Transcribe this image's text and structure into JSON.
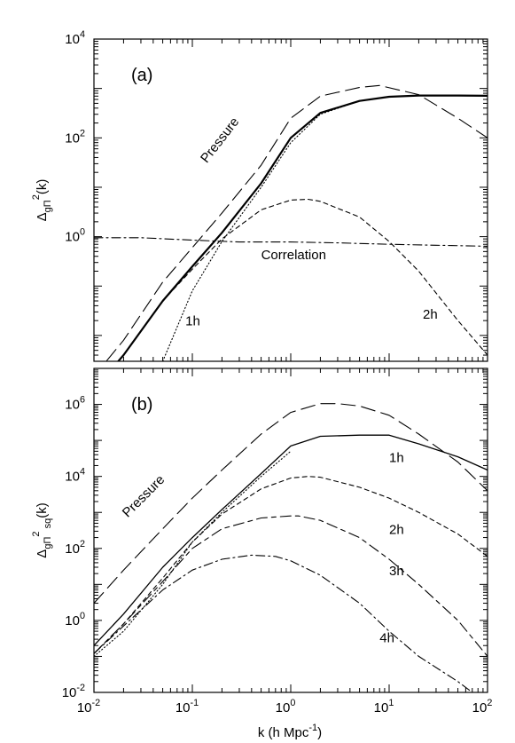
{
  "chart_data": [
    {
      "type": "line",
      "panel_label": "(a)",
      "ylabel": {
        "base": "Δ",
        "sub": "gΠ",
        "sup": "2",
        "tail": "(k)"
      },
      "xlabel": "",
      "xscale": "log",
      "yscale": "log",
      "xlim": [
        0.01,
        100
      ],
      "ylim": [
        0.003,
        10000
      ],
      "y_tick_labels": [
        {
          "base": "10",
          "exp": "4",
          "value": 10000
        },
        {
          "base": "10",
          "exp": "2",
          "value": 100
        },
        {
          "base": "10",
          "exp": "0",
          "value": 1
        }
      ],
      "x_tick_labels": [],
      "annotations": [
        {
          "text": "Pressure",
          "x": 0.14,
          "y": 30,
          "rotate": -52
        },
        {
          "text": "Correlation",
          "x": 0.5,
          "y": 0.35,
          "rotate": 0
        },
        {
          "text": "1h",
          "x": 0.085,
          "y": 0.016,
          "rotate": 0
        },
        {
          "text": "2h",
          "x": 22,
          "y": 0.022,
          "rotate": 0
        }
      ],
      "series": [
        {
          "style": "long-dash",
          "x": [
            0.01,
            0.02,
            0.05,
            0.1,
            0.2,
            0.5,
            1,
            2,
            5,
            8,
            20,
            50,
            100
          ],
          "y": [
            0.0015,
            0.008,
            0.12,
            0.6,
            3,
            28,
            250,
            700,
            1050,
            1150,
            750,
            250,
            100
          ]
        },
        {
          "style": "thick-solid",
          "x": [
            0.01,
            0.02,
            0.05,
            0.1,
            0.2,
            0.5,
            1,
            2,
            5,
            10,
            20,
            50,
            100
          ],
          "y": [
            0.0008,
            0.004,
            0.05,
            0.25,
            1.2,
            12,
            100,
            320,
            560,
            680,
            720,
            720,
            710
          ]
        },
        {
          "style": "dotted",
          "x": [
            0.05,
            0.1,
            0.2,
            0.5,
            1,
            2,
            5
          ],
          "y": [
            0.003,
            0.08,
            0.8,
            10,
            80,
            300,
            560
          ]
        },
        {
          "style": "short-dash",
          "x": [
            0.01,
            0.02,
            0.05,
            0.1,
            0.2,
            0.5,
            1,
            1.5,
            2,
            5,
            10,
            20,
            50,
            100
          ],
          "y": [
            0.0008,
            0.004,
            0.05,
            0.22,
            0.9,
            3.5,
            5.5,
            5.7,
            5.2,
            2.5,
            0.8,
            0.2,
            0.02,
            0.004
          ]
        },
        {
          "style": "dash-dot",
          "x": [
            0.01,
            0.03,
            0.1,
            0.3,
            1,
            3,
            10,
            30,
            100
          ],
          "y": [
            0.95,
            0.95,
            0.85,
            0.78,
            0.78,
            0.75,
            0.7,
            0.67,
            0.64
          ]
        }
      ]
    },
    {
      "type": "line",
      "panel_label": "(b)",
      "ylabel": {
        "base": "Δ",
        "sub": "gΠ",
        "sup": "2",
        "sub2": "sq",
        "tail": "(k)"
      },
      "xlabel": "k (h Mpc",
      "xlabel_sup": "-1",
      "xlabel_tail": ")",
      "xscale": "log",
      "yscale": "log",
      "xlim": [
        0.01,
        100
      ],
      "ylim": [
        0.01,
        10000000
      ],
      "x_tick_labels": [
        {
          "base": "10",
          "exp": "-2",
          "value": 0.01
        },
        {
          "base": "10",
          "exp": "-1",
          "value": 0.1
        },
        {
          "base": "10",
          "exp": "0",
          "value": 1
        },
        {
          "base": "10",
          "exp": "1",
          "value": 10
        },
        {
          "base": "10",
          "exp": "2",
          "value": 100
        }
      ],
      "y_tick_labels": [
        {
          "base": "10",
          "exp": "6",
          "value": 1000000
        },
        {
          "base": "10",
          "exp": "4",
          "value": 10000
        },
        {
          "base": "10",
          "exp": "2",
          "value": 100
        },
        {
          "base": "10",
          "exp": "0",
          "value": 1
        },
        {
          "base": "10",
          "exp": "-2",
          "value": 0.01
        }
      ],
      "annotations": [
        {
          "text": "Pressure",
          "x": 0.022,
          "y": 700,
          "rotate": -45
        },
        {
          "text": "1h",
          "x": 10,
          "y": 25000,
          "rotate": 0
        },
        {
          "text": "2h",
          "x": 10,
          "y": 250,
          "rotate": 0
        },
        {
          "text": "3h",
          "x": 10,
          "y": 18,
          "rotate": 0
        },
        {
          "text": "4h",
          "x": 8,
          "y": 0.25,
          "rotate": 0
        }
      ],
      "series": [
        {
          "style": "long-dash",
          "x": [
            0.01,
            0.02,
            0.05,
            0.1,
            0.2,
            0.5,
            1,
            2,
            3,
            5,
            10,
            20,
            50,
            100
          ],
          "y": [
            3,
            25,
            350,
            2500,
            15000,
            150000,
            600000,
            1050000,
            1050000,
            900000,
            500000,
            150000,
            25000,
            4000
          ]
        },
        {
          "style": "solid",
          "x": [
            0.01,
            0.02,
            0.05,
            0.1,
            0.2,
            0.5,
            1,
            2,
            5,
            10,
            20,
            50,
            100
          ],
          "y": [
            0.2,
            1.5,
            30,
            200,
            1200,
            12000,
            70000,
            130000,
            140000,
            140000,
            80000,
            35000,
            15000
          ]
        },
        {
          "style": "dotted",
          "x": [
            0.01,
            0.02,
            0.05,
            0.1,
            0.2,
            0.5,
            1
          ],
          "y": [
            0.1,
            0.5,
            10,
            150,
            1000,
            10000,
            50000
          ]
        },
        {
          "style": "short-dash",
          "x": [
            0.01,
            0.02,
            0.05,
            0.1,
            0.2,
            0.5,
            1,
            1.5,
            2,
            5,
            10,
            20,
            50,
            100
          ],
          "y": [
            0.12,
            0.8,
            15,
            150,
            900,
            4500,
            9000,
            10000,
            9500,
            5000,
            2500,
            1000,
            250,
            60
          ]
        },
        {
          "style": "dash-long-short",
          "x": [
            0.01,
            0.02,
            0.05,
            0.1,
            0.2,
            0.5,
            1,
            1.2,
            2,
            5,
            10,
            20,
            50,
            100
          ],
          "y": [
            0.12,
            0.8,
            12,
            100,
            350,
            700,
            800,
            800,
            600,
            200,
            50,
            10,
            1,
            0.1
          ]
        },
        {
          "style": "dash-dot",
          "x": [
            0.01,
            0.02,
            0.05,
            0.1,
            0.2,
            0.4,
            0.7,
            1,
            2,
            5,
            10,
            20,
            50,
            70
          ],
          "y": [
            0.12,
            0.7,
            7,
            25,
            50,
            65,
            60,
            45,
            18,
            3,
            0.5,
            0.1,
            0.02,
            0.01
          ]
        }
      ]
    }
  ]
}
